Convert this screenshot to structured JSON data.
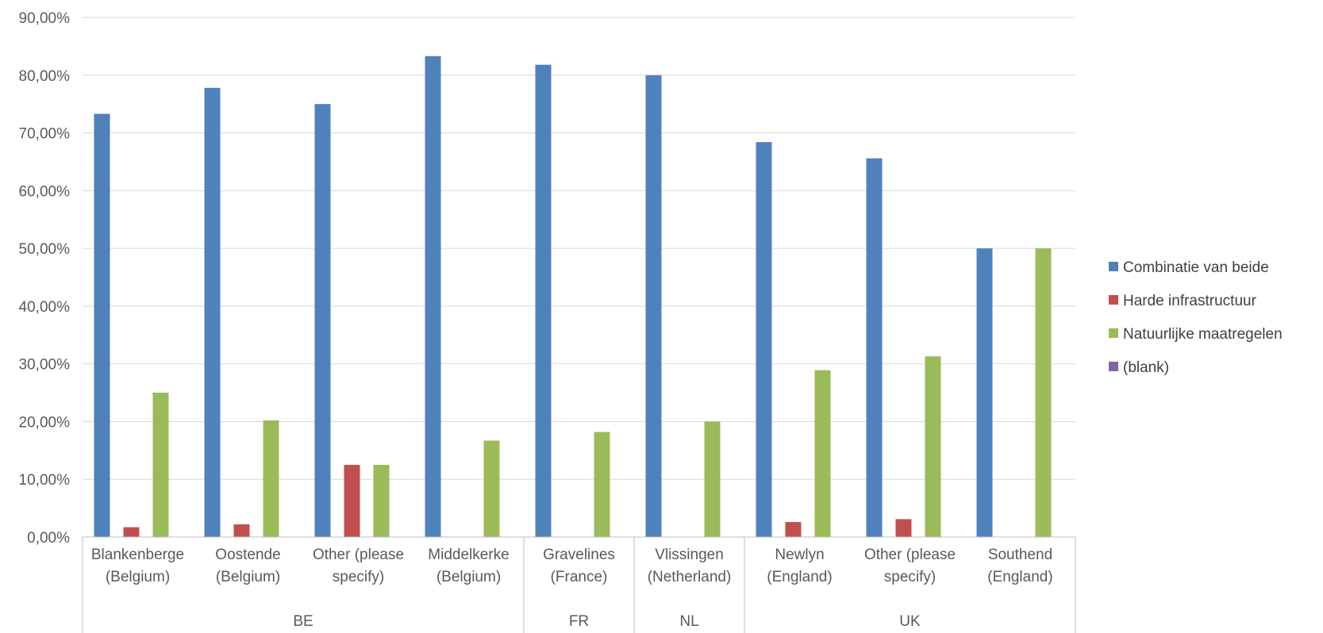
{
  "chart_data": {
    "type": "bar",
    "title": "",
    "xlabel": "",
    "ylabel": "",
    "ylim": [
      0,
      90
    ],
    "y_ticks": [
      "0,00%",
      "10,00%",
      "20,00%",
      "30,00%",
      "40,00%",
      "50,00%",
      "60,00%",
      "70,00%",
      "80,00%",
      "90,00%"
    ],
    "grid": true,
    "legend_position": "right",
    "categories": [
      {
        "line1": "Blankenberge",
        "line2": "(Belgium)"
      },
      {
        "line1": "Oostende",
        "line2": "(Belgium)"
      },
      {
        "line1": "Other (please",
        "line2": "specify)"
      },
      {
        "line1": "Middelkerke",
        "line2": "(Belgium)"
      },
      {
        "line1": "Gravelines",
        "line2": "(France)"
      },
      {
        "line1": "Vlissingen",
        "line2": "(Netherland)"
      },
      {
        "line1": "Newlyn",
        "line2": "(England)"
      },
      {
        "line1": "Other (please",
        "line2": "specify)"
      },
      {
        "line1": "Southend",
        "line2": "(England)"
      }
    ],
    "groups": [
      {
        "label": "BE",
        "count": 4
      },
      {
        "label": "FR",
        "count": 1
      },
      {
        "label": "NL",
        "count": 1
      },
      {
        "label": "UK",
        "count": 3
      }
    ],
    "series": [
      {
        "name": "Combinatie van beide",
        "color": "#4F81BD",
        "values": [
          73.3,
          77.8,
          75.0,
          83.3,
          81.8,
          80.0,
          68.4,
          65.6,
          50.0
        ]
      },
      {
        "name": "Harde infrastructuur",
        "color": "#C0504D",
        "values": [
          1.7,
          2.2,
          12.5,
          0,
          0,
          0,
          2.6,
          3.1,
          0
        ]
      },
      {
        "name": "Natuurlijke maatregelen",
        "color": "#9BBB59",
        "values": [
          25.0,
          20.2,
          12.5,
          16.7,
          18.2,
          20.0,
          28.9,
          31.3,
          50.0
        ]
      },
      {
        "name": "(blank)",
        "color": "#8064A2",
        "values": [
          0,
          0,
          0,
          0,
          0,
          0,
          0,
          0,
          0
        ]
      }
    ]
  }
}
